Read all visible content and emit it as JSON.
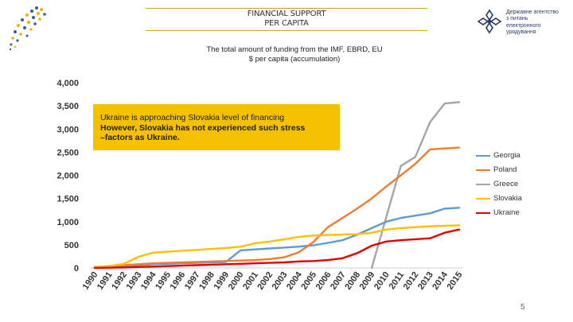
{
  "header": {
    "title_line1": "FINANCIAL SUPPORT",
    "title_line2": "PER CAPITA",
    "logo_right_lines": [
      "Державне агентство",
      "з питань",
      "електронного",
      "урядування"
    ]
  },
  "page_number": "5",
  "colors": {
    "Georgia": "#5b9bd5",
    "Poland": "#ed7d31",
    "Greece": "#a5a5a5",
    "Slovakia": "#ffc000",
    "Ukraine": "#e00000",
    "annotation_bg": "#f5c000",
    "header_rule": "#c9a227"
  },
  "chart_data": {
    "type": "line",
    "title_line1": "The total amount of funding from the IMF, EBRD, EU",
    "title_line2": "$ per capita (accumulation)",
    "xlabel": "",
    "ylabel": "",
    "ylim": [
      0,
      4000
    ],
    "yticks": [
      "0",
      "500",
      "1,000",
      "1,500",
      "2,000",
      "2,500",
      "3,000",
      "3,500",
      "4,000"
    ],
    "x": [
      "1990",
      "1991",
      "1992",
      "1993",
      "1994",
      "1995",
      "1996",
      "1997",
      "1998",
      "1999",
      "2000",
      "2001",
      "2002",
      "2003",
      "2004",
      "2005",
      "2006",
      "2007",
      "2008",
      "2009",
      "2010",
      "2011",
      "2012",
      "2013",
      "2014",
      "2015"
    ],
    "grid": false,
    "legend_position": "right",
    "annotation": {
      "line1": "Ukraine is approaching Slovakia level of financing",
      "line2": "However, Slovakia has not experienced such stress",
      "line3": "–factors as Ukraine."
    },
    "series": [
      {
        "name": "Georgia",
        "values": [
          10,
          20,
          40,
          60,
          80,
          90,
          100,
          110,
          120,
          130,
          380,
          400,
          420,
          440,
          460,
          490,
          540,
          600,
          720,
          860,
          1000,
          1080,
          1130,
          1180,
          1280,
          1300
        ]
      },
      {
        "name": "Poland",
        "values": [
          20,
          40,
          60,
          80,
          100,
          110,
          120,
          130,
          140,
          150,
          160,
          170,
          190,
          230,
          340,
          560,
          880,
          1080,
          1280,
          1500,
          1760,
          2000,
          2250,
          2560,
          2580,
          2600
        ]
      },
      {
        "name": "Greece",
        "values": [
          null,
          null,
          null,
          null,
          null,
          null,
          null,
          null,
          null,
          null,
          null,
          null,
          null,
          null,
          null,
          null,
          null,
          null,
          null,
          0,
          1100,
          2200,
          2400,
          3150,
          3550,
          3580
        ]
      },
      {
        "name": "Slovakia",
        "values": [
          20,
          40,
          90,
          240,
          330,
          350,
          370,
          390,
          410,
          430,
          460,
          530,
          570,
          620,
          670,
          700,
          710,
          720,
          730,
          760,
          830,
          860,
          880,
          900,
          910,
          920
        ]
      },
      {
        "name": "Ukraine",
        "values": [
          0,
          5,
          10,
          20,
          30,
          40,
          50,
          60,
          70,
          80,
          90,
          100,
          110,
          120,
          140,
          150,
          170,
          210,
          320,
          480,
          570,
          600,
          620,
          640,
          760,
          830
        ]
      }
    ]
  }
}
